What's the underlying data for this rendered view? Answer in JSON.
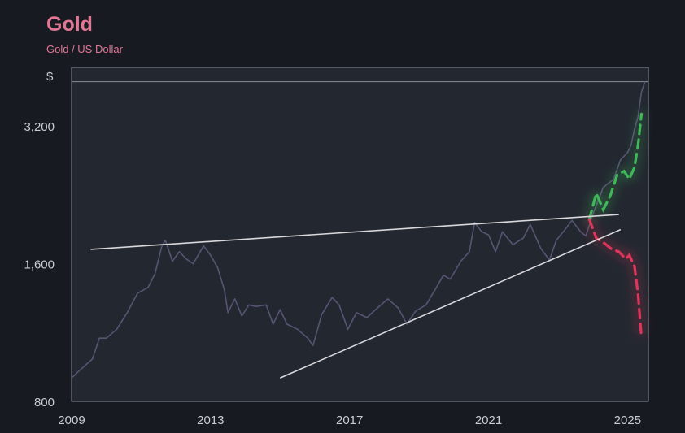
{
  "chart_data": {
    "type": "line",
    "title": "Gold",
    "subtitle": "Gold / US Dollar",
    "y_unit": "$",
    "y_scale": "log",
    "ylim": [
      800,
      4300
    ],
    "xlim": [
      2009.0,
      2025.6
    ],
    "x_ticks": [
      "2009",
      "2013",
      "2017",
      "2021",
      "2025"
    ],
    "y_ticks": [
      "800",
      "1,600",
      "3,200"
    ],
    "y_tick_values": [
      800,
      1600,
      3200
    ],
    "grid": false,
    "colors": {
      "price": "#575473",
      "trendline": "#d8d8dc",
      "bull": "#41b85a",
      "bear": "#e0345a",
      "frame": "#8a8e96",
      "plot_bg": "#232830"
    },
    "reference_line": {
      "y": 4000
    },
    "series": [
      {
        "key": "price",
        "points": [
          [
            2009.0,
            900
          ],
          [
            2009.2,
            930
          ],
          [
            2009.4,
            960
          ],
          [
            2009.6,
            990
          ],
          [
            2009.8,
            1100
          ],
          [
            2010.0,
            1100
          ],
          [
            2010.3,
            1150
          ],
          [
            2010.6,
            1250
          ],
          [
            2010.9,
            1380
          ],
          [
            2011.2,
            1420
          ],
          [
            2011.4,
            1520
          ],
          [
            2011.6,
            1750
          ],
          [
            2011.7,
            1800
          ],
          [
            2011.9,
            1620
          ],
          [
            2012.1,
            1700
          ],
          [
            2012.3,
            1640
          ],
          [
            2012.5,
            1600
          ],
          [
            2012.8,
            1750
          ],
          [
            2013.0,
            1670
          ],
          [
            2013.2,
            1570
          ],
          [
            2013.4,
            1400
          ],
          [
            2013.5,
            1250
          ],
          [
            2013.7,
            1340
          ],
          [
            2013.9,
            1230
          ],
          [
            2014.1,
            1300
          ],
          [
            2014.3,
            1290
          ],
          [
            2014.6,
            1300
          ],
          [
            2014.8,
            1180
          ],
          [
            2015.0,
            1270
          ],
          [
            2015.2,
            1180
          ],
          [
            2015.5,
            1150
          ],
          [
            2015.8,
            1100
          ],
          [
            2015.95,
            1060
          ],
          [
            2016.2,
            1240
          ],
          [
            2016.5,
            1350
          ],
          [
            2016.7,
            1300
          ],
          [
            2016.95,
            1150
          ],
          [
            2017.2,
            1250
          ],
          [
            2017.5,
            1220
          ],
          [
            2017.8,
            1280
          ],
          [
            2018.1,
            1340
          ],
          [
            2018.4,
            1280
          ],
          [
            2018.65,
            1180
          ],
          [
            2018.9,
            1260
          ],
          [
            2019.2,
            1300
          ],
          [
            2019.5,
            1420
          ],
          [
            2019.7,
            1510
          ],
          [
            2019.9,
            1480
          ],
          [
            2020.2,
            1620
          ],
          [
            2020.45,
            1700
          ],
          [
            2020.6,
            1970
          ],
          [
            2020.8,
            1880
          ],
          [
            2021.0,
            1850
          ],
          [
            2021.2,
            1700
          ],
          [
            2021.4,
            1880
          ],
          [
            2021.7,
            1760
          ],
          [
            2022.0,
            1820
          ],
          [
            2022.2,
            1950
          ],
          [
            2022.5,
            1730
          ],
          [
            2022.75,
            1630
          ],
          [
            2022.95,
            1800
          ],
          [
            2023.2,
            1900
          ],
          [
            2023.4,
            1990
          ],
          [
            2023.65,
            1880
          ],
          [
            2023.8,
            1840
          ],
          [
            2024.0,
            2050
          ],
          [
            2024.3,
            2350
          ],
          [
            2024.6,
            2450
          ],
          [
            2024.8,
            2700
          ],
          [
            2025.0,
            2800
          ],
          [
            2025.1,
            2900
          ],
          [
            2025.2,
            3150
          ],
          [
            2025.3,
            3350
          ],
          [
            2025.4,
            3800
          ],
          [
            2025.5,
            4000
          ]
        ]
      },
      {
        "key": "bull",
        "points": [
          [
            2023.9,
            2000
          ],
          [
            2024.1,
            2280
          ],
          [
            2024.3,
            2100
          ],
          [
            2024.5,
            2250
          ],
          [
            2024.7,
            2500
          ],
          [
            2024.9,
            2550
          ],
          [
            2025.05,
            2450
          ],
          [
            2025.2,
            2600
          ],
          [
            2025.3,
            2900
          ],
          [
            2025.4,
            3400
          ]
        ]
      },
      {
        "key": "bear",
        "points": [
          [
            2023.9,
            2000
          ],
          [
            2024.1,
            1820
          ],
          [
            2024.35,
            1770
          ],
          [
            2024.55,
            1720
          ],
          [
            2024.75,
            1700
          ],
          [
            2024.95,
            1640
          ],
          [
            2025.05,
            1670
          ],
          [
            2025.2,
            1580
          ],
          [
            2025.3,
            1380
          ],
          [
            2025.4,
            1100
          ]
        ]
      }
    ],
    "trendlines": [
      {
        "from": [
          2009.55,
          1720
        ],
        "to": [
          2024.75,
          2050
        ]
      },
      {
        "from": [
          2015.0,
          900
        ],
        "to": [
          2024.8,
          1900
        ]
      }
    ]
  }
}
